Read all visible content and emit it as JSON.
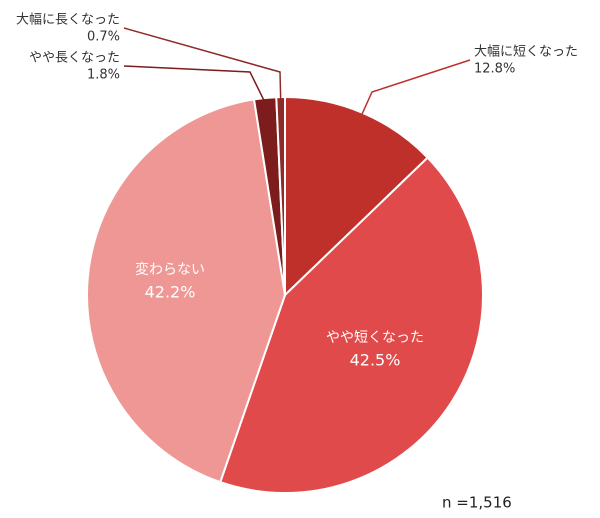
{
  "chart_data": {
    "type": "pie",
    "categories": [
      "大幅に短くなった",
      "やや短くなった",
      "変わらない",
      "やや長くなった",
      "大幅に長くなった"
    ],
    "values": [
      12.8,
      42.5,
      42.2,
      1.8,
      0.7
    ],
    "value_labels": [
      "12.8%",
      "42.5%",
      "42.2%",
      "1.8%",
      "0.7%"
    ],
    "colors": [
      "#bf302b",
      "#e04a4a",
      "#ee9794",
      "#7d1c1c",
      "#8e2a2a"
    ],
    "note": "n =1,516"
  }
}
